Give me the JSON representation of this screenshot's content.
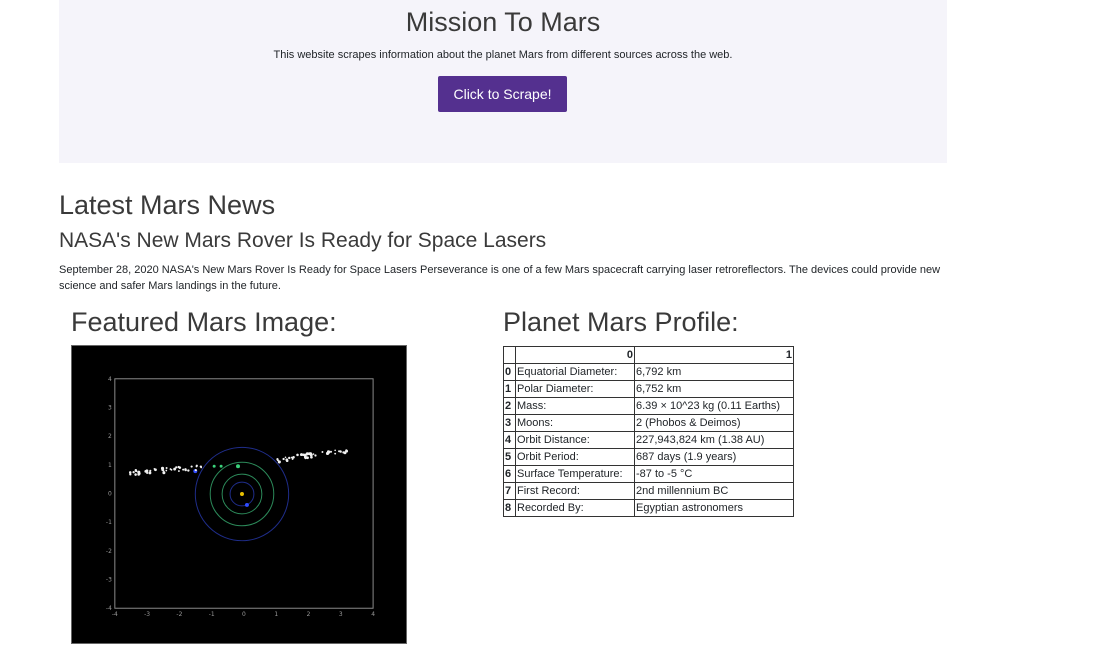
{
  "jumbotron": {
    "title": "Mission To Mars",
    "subtitle": "This website scrapes information about the planet Mars from different sources across the web.",
    "button_label": "Click to Scrape!",
    "button_color": "#54308f"
  },
  "news": {
    "heading": "Latest Mars News",
    "title": "NASA's New Mars Rover Is Ready for Space Lasers",
    "body": "September 28, 2020 NASA's New Mars Rover Is Ready for Space Lasers Perseverance is one of a few Mars spacecraft carrying laser retroreflectors. The devices could provide new science and safer Mars landings in the future."
  },
  "featured": {
    "heading": "Featured Mars Image:",
    "x_ticks": [
      "-4",
      "-3",
      "-2",
      "-1",
      "0",
      "1",
      "2",
      "3",
      "4"
    ],
    "y_ticks": [
      "4",
      "3",
      "2",
      "1",
      "0",
      "-1",
      "-2",
      "-3",
      "-4"
    ]
  },
  "profile": {
    "heading": "Planet Mars Profile:",
    "columns": [
      "",
      "0",
      "1"
    ],
    "rows": [
      {
        "idx": "0",
        "label": "Equatorial Diameter:",
        "value": "6,792 km"
      },
      {
        "idx": "1",
        "label": "Polar Diameter:",
        "value": "6,752 km"
      },
      {
        "idx": "2",
        "label": "Mass:",
        "value": "6.39 × 10^23 kg (0.11 Earths)"
      },
      {
        "idx": "3",
        "label": "Moons:",
        "value": "2 (Phobos & Deimos)"
      },
      {
        "idx": "4",
        "label": "Orbit Distance:",
        "value": "227,943,824 km (1.38 AU)"
      },
      {
        "idx": "5",
        "label": "Orbit Period:",
        "value": "687 days (1.9 years)"
      },
      {
        "idx": "6",
        "label": "Surface Temperature:",
        "value": "-87 to -5 °C"
      },
      {
        "idx": "7",
        "label": "First Record:",
        "value": "2nd millennium BC"
      },
      {
        "idx": "8",
        "label": "Recorded By:",
        "value": "Egyptian astronomers"
      }
    ]
  }
}
